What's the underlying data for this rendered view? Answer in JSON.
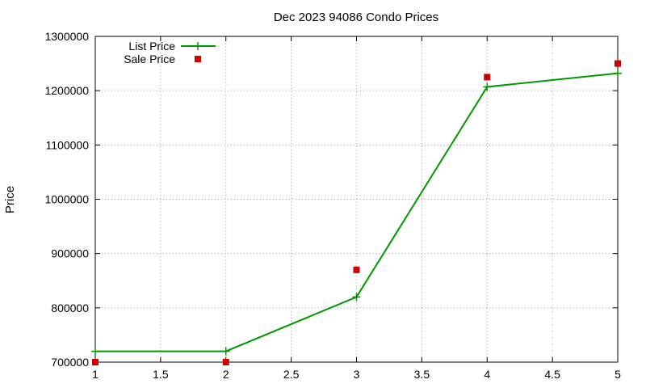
{
  "chart_data": {
    "type": "line",
    "title": "Dec 2023 94086 Condo Prices",
    "xlabel": "",
    "ylabel": "Price",
    "xlim": [
      1,
      5
    ],
    "ylim": [
      700000,
      1300000
    ],
    "x_ticks": [
      "1",
      "1.5",
      "2",
      "2.5",
      "3",
      "3.5",
      "4",
      "4.5",
      "5"
    ],
    "y_ticks": [
      "700000",
      "800000",
      "900000",
      "1000000",
      "1100000",
      "1200000",
      "1300000"
    ],
    "grid": true,
    "legend_position": "top-left",
    "series": [
      {
        "name": "List Price",
        "style": "line+plus",
        "color": "#009900",
        "x": [
          1,
          2,
          3,
          4,
          5
        ],
        "values": [
          720000,
          720000,
          820000,
          1207000,
          1232000
        ]
      },
      {
        "name": "Sale Price",
        "style": "square-markers",
        "color": "#cc0000",
        "x": [
          1,
          2,
          3,
          4,
          5
        ],
        "values": [
          700000,
          700000,
          870000,
          1225000,
          1250000
        ]
      }
    ]
  }
}
